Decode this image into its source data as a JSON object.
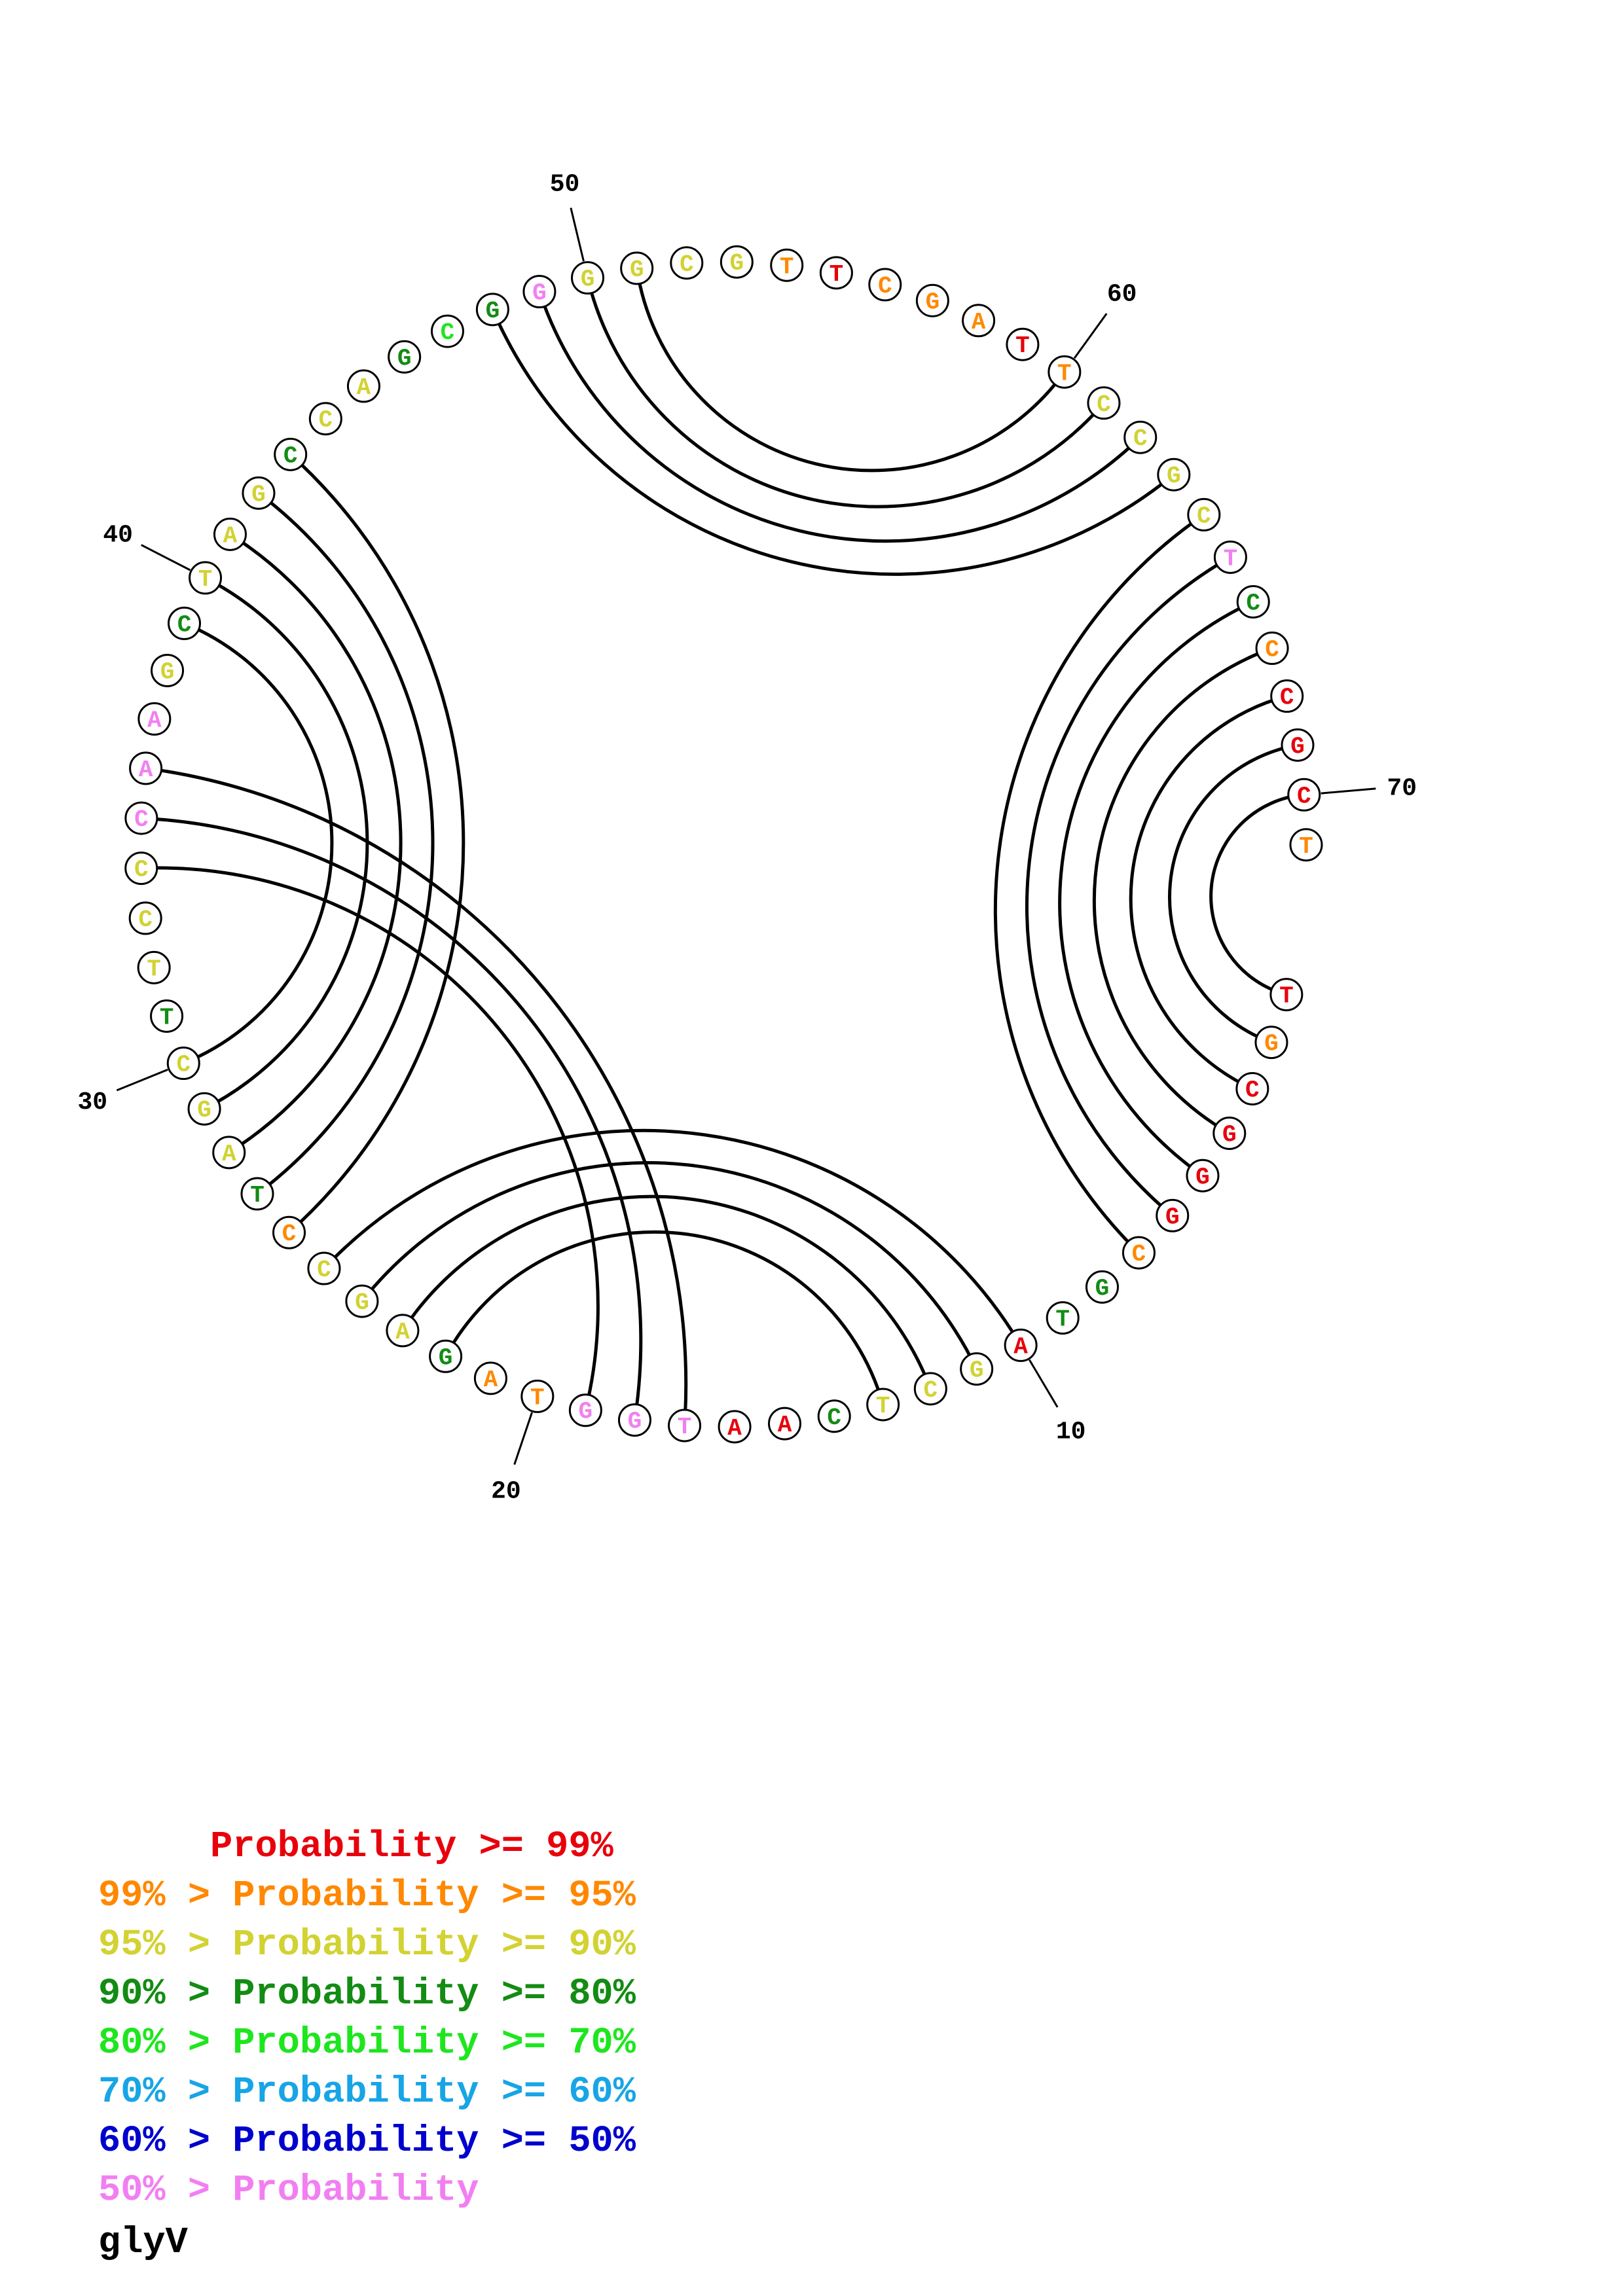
{
  "chart_data": {
    "type": "circular-rna-secondary-structure",
    "molecule": "glyV",
    "sequence": [
      "T",
      "G",
      "C",
      "G",
      "G",
      "G",
      "C",
      "G",
      "T",
      "A",
      "G",
      "C",
      "T",
      "C",
      "A",
      "A",
      "T",
      "G",
      "G",
      "T",
      "A",
      "G",
      "A",
      "G",
      "C",
      "C",
      "T",
      "A",
      "G",
      "C",
      "T",
      "T",
      "C",
      "C",
      "C",
      "A",
      "A",
      "G",
      "C",
      "T",
      "A",
      "G",
      "C",
      "C",
      "A",
      "G",
      "C",
      "G",
      "G",
      "G",
      "G",
      "C",
      "G",
      "T",
      "T",
      "C",
      "G",
      "A",
      "T",
      "T",
      "C",
      "C",
      "G",
      "C",
      "T",
      "C",
      "C",
      "C",
      "G",
      "C",
      "T"
    ],
    "base_colors": [
      "#e8000b",
      "#ff8800",
      "#e8000b",
      "#e8000b",
      "#e8000b",
      "#e8000b",
      "#ff8800",
      "#138c13",
      "#138c13",
      "#e8000b",
      "#d2d232",
      "#d2d232",
      "#d2d232",
      "#138c13",
      "#e8000b",
      "#e8000b",
      "#f27ff2",
      "#f27ff2",
      "#f27ff2",
      "#ff8800",
      "#ff8800",
      "#138c13",
      "#d2d232",
      "#d2d232",
      "#d2d232",
      "#ff8800",
      "#138c13",
      "#d2d232",
      "#d2d232",
      "#d2d232",
      "#138c13",
      "#d2d232",
      "#d2d232",
      "#d2d232",
      "#f27ff2",
      "#f27ff2",
      "#f27ff2",
      "#d2d232",
      "#138c13",
      "#d2d232",
      "#d2d232",
      "#d2d232",
      "#138c13",
      "#d2d232",
      "#d2d232",
      "#138c13",
      "#1ee61e",
      "#138c13",
      "#f27ff2",
      "#d2d232",
      "#d2d232",
      "#d2d232",
      "#d2d232",
      "#ff8800",
      "#e8000b",
      "#ff8800",
      "#ff8800",
      "#ff8800",
      "#e8000b",
      "#ff8800",
      "#d2d232",
      "#d2d232",
      "#d2d232",
      "#d2d232",
      "#f27ff2",
      "#138c13",
      "#ff8800",
      "#e8000b",
      "#e8000b",
      "#e8000b",
      "#ff8800"
    ],
    "position_labels": [
      {
        "index": 10,
        "text": "10"
      },
      {
        "index": 20,
        "text": "20"
      },
      {
        "index": 30,
        "text": "30"
      },
      {
        "index": 40,
        "text": "40"
      },
      {
        "index": 50,
        "text": "50"
      },
      {
        "index": 60,
        "text": "60"
      },
      {
        "index": 70,
        "text": "70"
      }
    ],
    "base_pairs": [
      [
        1,
        70
      ],
      [
        2,
        69
      ],
      [
        3,
        68
      ],
      [
        4,
        67
      ],
      [
        5,
        66
      ],
      [
        6,
        65
      ],
      [
        7,
        64
      ],
      [
        10,
        25
      ],
      [
        11,
        24
      ],
      [
        12,
        23
      ],
      [
        13,
        22
      ],
      [
        17,
        36
      ],
      [
        18,
        35
      ],
      [
        19,
        34
      ],
      [
        26,
        43
      ],
      [
        27,
        42
      ],
      [
        28,
        41
      ],
      [
        29,
        40
      ],
      [
        30,
        39
      ],
      [
        48,
        63
      ],
      [
        49,
        62
      ],
      [
        50,
        61
      ],
      [
        51,
        60
      ]
    ]
  },
  "legend": [
    {
      "text": "     Probability >= 99%",
      "color": "#e8000b"
    },
    {
      "text": "99% > Probability >= 95%",
      "color": "#ff8800"
    },
    {
      "text": "95% > Probability >= 90%",
      "color": "#d2d232"
    },
    {
      "text": "90% > Probability >= 80%",
      "color": "#138c13"
    },
    {
      "text": "80% > Probability >= 70%",
      "color": "#1ee61e"
    },
    {
      "text": "70% > Probability >= 60%",
      "color": "#17a5e6"
    },
    {
      "text": "60% > Probability >= 50%",
      "color": "#0000ce"
    },
    {
      "text": "50% > Probability",
      "color": "#f27ff2"
    }
  ]
}
